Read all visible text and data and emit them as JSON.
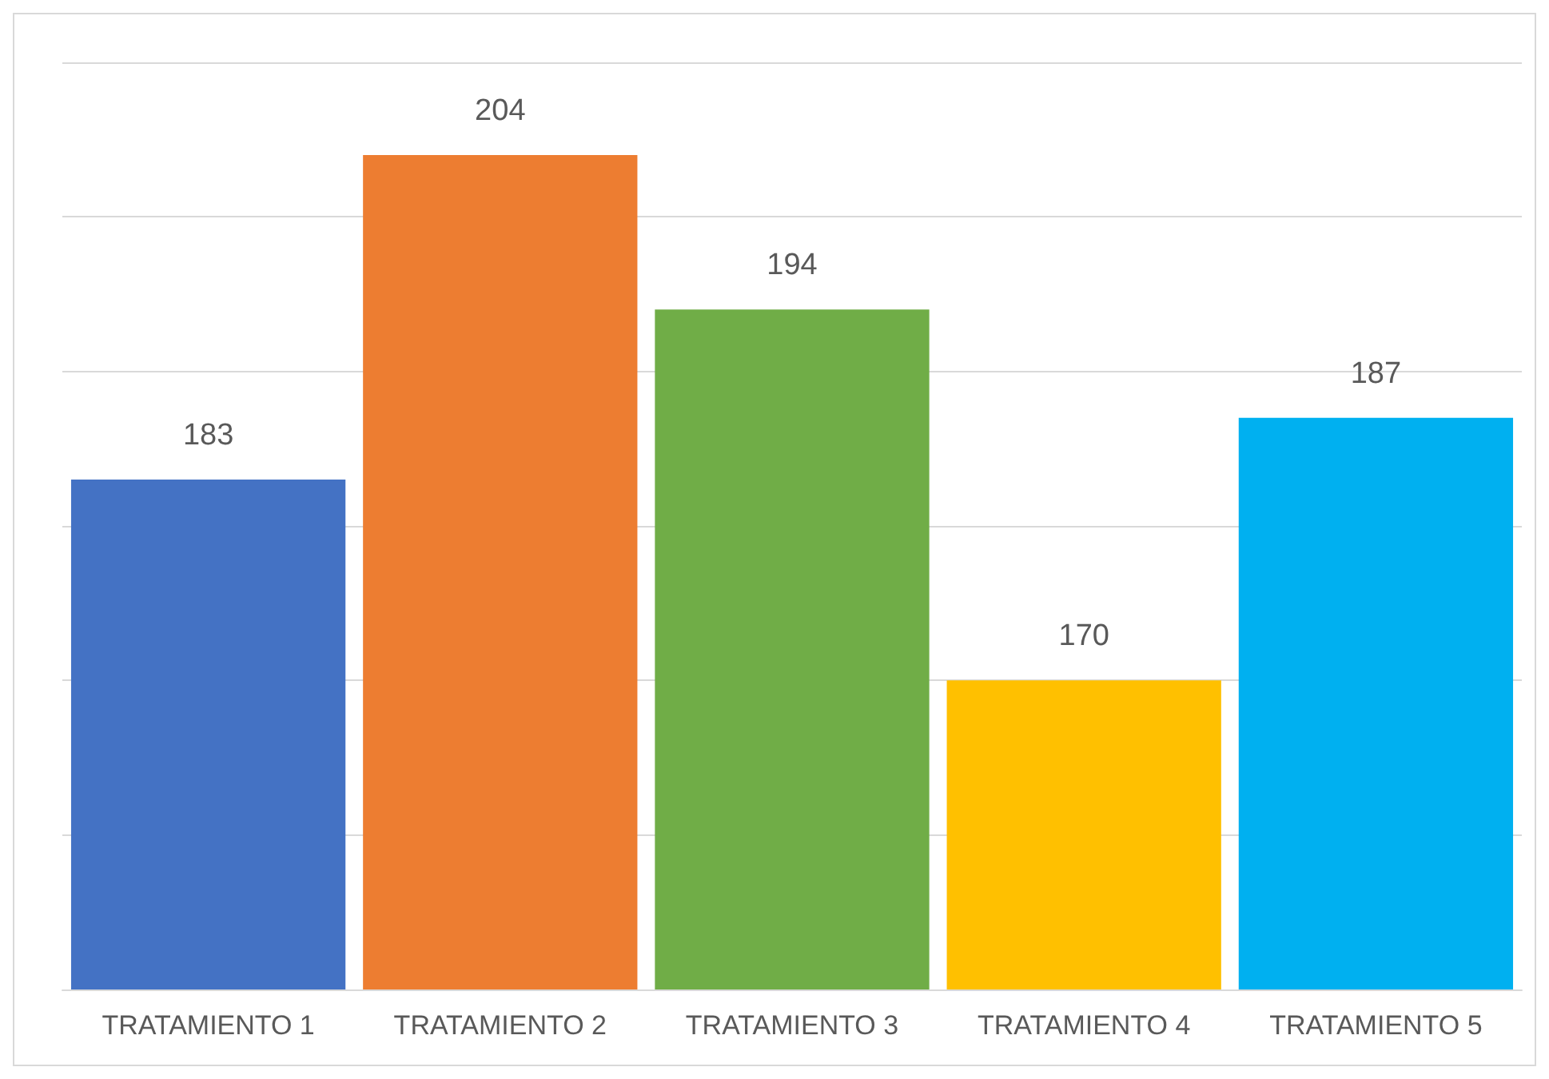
{
  "chart_data": {
    "type": "bar",
    "categories": [
      "TRATAMIENTO 1",
      "TRATAMIENTO 2",
      "TRATAMIENTO 3",
      "TRATAMIENTO 4",
      "TRATAMIENTO 5"
    ],
    "values": [
      183,
      204,
      194,
      170,
      187
    ],
    "colors": [
      "#4472c4",
      "#ed7d31",
      "#70ad47",
      "#ffc000",
      "#00b0f0"
    ],
    "ylim": [
      150,
      210
    ],
    "yticks": [
      {
        "value": 150,
        "label": null
      },
      {
        "value": 160,
        "label": null
      },
      {
        "value": 170,
        "label": null
      },
      {
        "value": 180,
        "label": null
      },
      {
        "value": 190,
        "label": null
      },
      {
        "value": 200,
        "label": null
      },
      {
        "value": 210,
        "label": null
      }
    ],
    "grid": "y",
    "data_labels": true,
    "tick_labels": "x"
  }
}
